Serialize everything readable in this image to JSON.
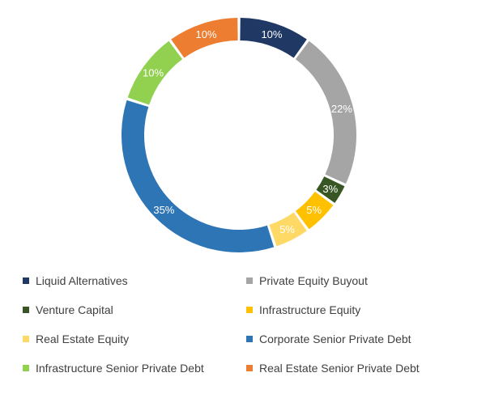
{
  "chart_data": {
    "type": "pie",
    "variant": "donut",
    "title": "",
    "legend_position": "bottom",
    "data_labels": true,
    "slices": [
      {
        "name": "Liquid Alternatives",
        "value": 10,
        "label": "10%",
        "color": "#1f3864"
      },
      {
        "name": "Private Equity Buyout",
        "value": 22,
        "label": "22%",
        "color": "#a5a5a5"
      },
      {
        "name": "Venture Capital",
        "value": 3,
        "label": "3%",
        "color": "#375623"
      },
      {
        "name": "Infrastructure Equity",
        "value": 5,
        "label": "5%",
        "color": "#ffc000"
      },
      {
        "name": "Real Estate Equity",
        "value": 5,
        "label": "5%",
        "color": "#ffd966"
      },
      {
        "name": "Corporate Senior Private Debt",
        "value": 35,
        "label": "35%",
        "color": "#2e75b6"
      },
      {
        "name": "Infrastructure Senior Private Debt",
        "value": 10,
        "label": "10%",
        "color": "#92d050"
      },
      {
        "name": "Real Estate Senior Private Debt",
        "value": 10,
        "label": "10%",
        "color": "#ed7d31"
      }
    ]
  }
}
